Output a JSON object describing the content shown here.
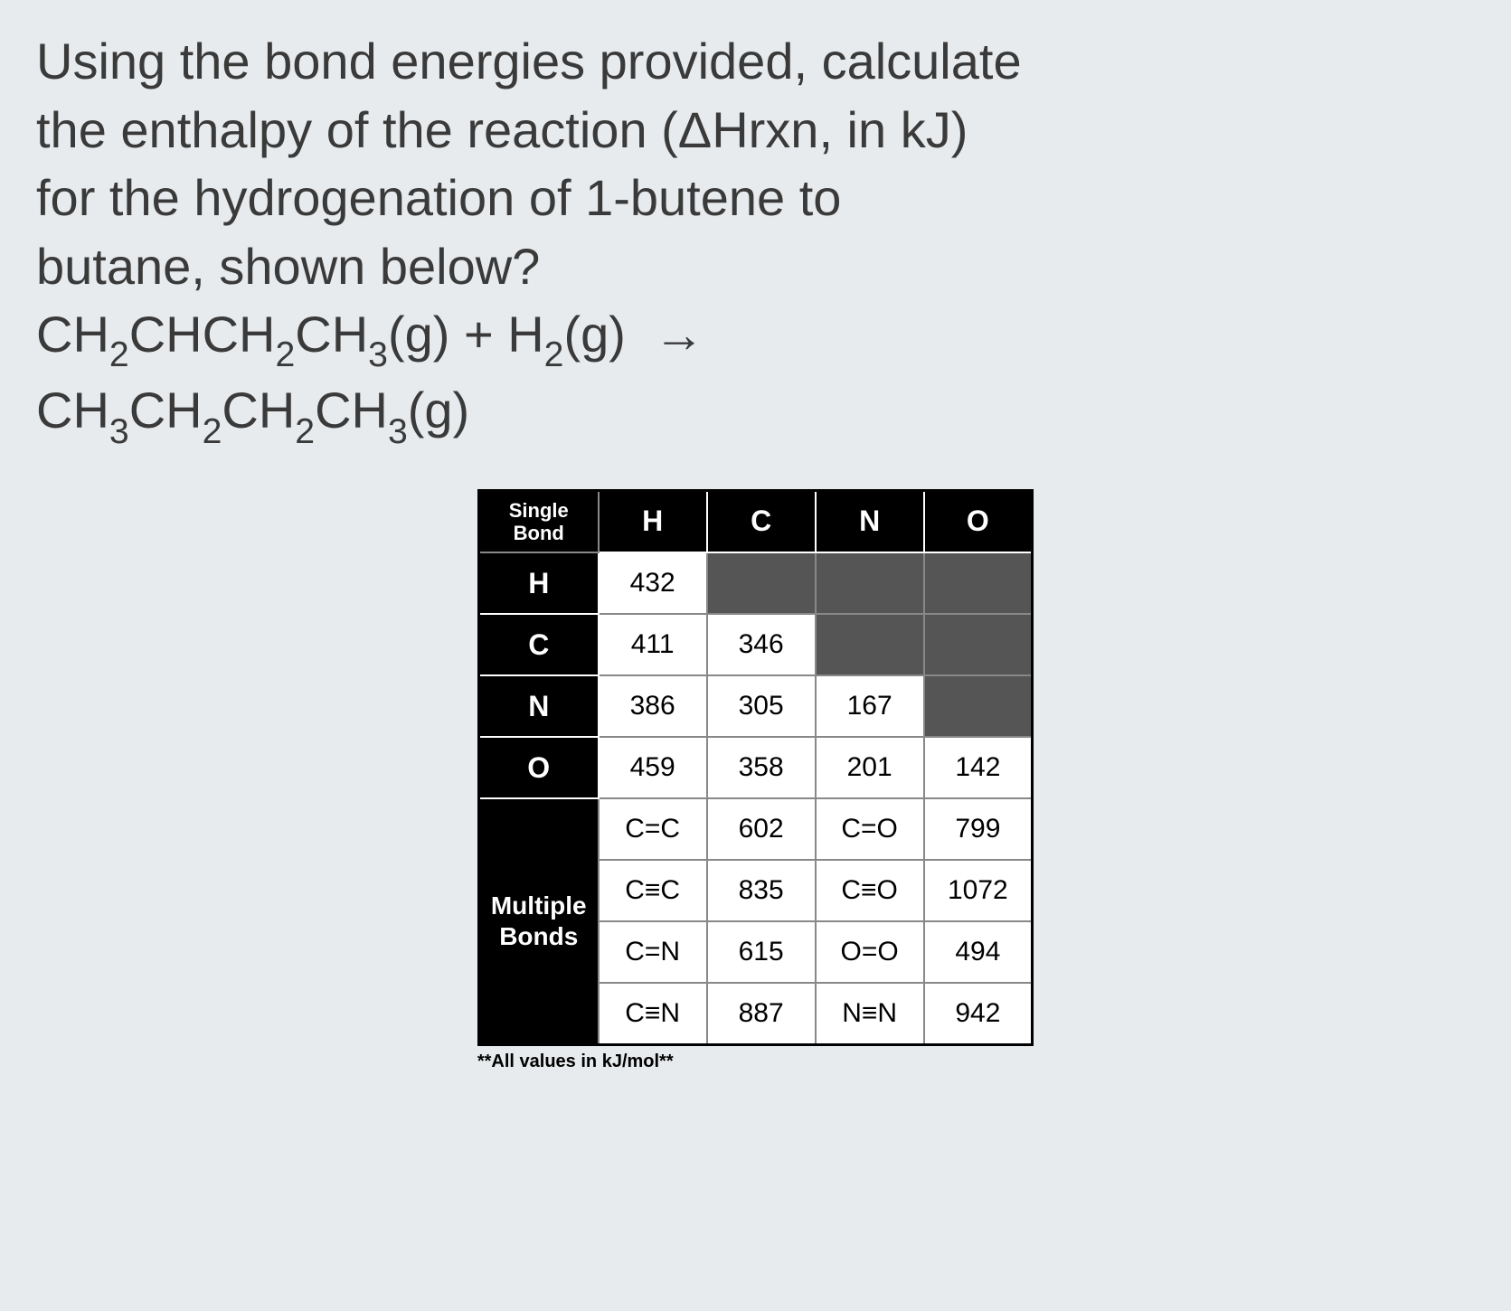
{
  "question": {
    "line1": "Using the bond energies provided, calculate",
    "line2_a": "the enthalpy of the reaction (",
    "line2_b": "Hrxn, in kJ)",
    "line3": "for the hydrogenation of 1-butene to",
    "line4": "butane, shown below?",
    "delta": "Δ",
    "reaction_lhs": "CH",
    "arrow": "→"
  },
  "table": {
    "corner_label_1": "Single",
    "corner_label_2": "Bond",
    "col_headers": [
      "H",
      "C",
      "N",
      "O"
    ],
    "row_headers": [
      "H",
      "C",
      "N",
      "O"
    ],
    "single_bonds": {
      "H": {
        "H": "432",
        "C": "",
        "N": "",
        "O": ""
      },
      "C": {
        "H": "411",
        "C": "346",
        "N": "",
        "O": ""
      },
      "N": {
        "H": "386",
        "C": "305",
        "N": "167",
        "O": ""
      },
      "O": {
        "H": "459",
        "C": "358",
        "N": "201",
        "O": "142"
      }
    },
    "multiple_label_1": "Multiple",
    "multiple_label_2": "Bonds",
    "multiple_bonds": [
      {
        "b1": "C=C",
        "v1": "602",
        "b2": "C=O",
        "v2": "799"
      },
      {
        "b1": "C≡C",
        "v1": "835",
        "b2": "C≡O",
        "v2": "1072"
      },
      {
        "b1": "C=N",
        "v1": "615",
        "b2": "O=O",
        "v2": "494"
      },
      {
        "b1": "C≡N",
        "v1": "887",
        "b2": "N≡N",
        "v2": "942"
      }
    ],
    "footnote": "**All values in kJ/mol**"
  },
  "colors": {
    "background": "#e8ebed",
    "text": "#3a3a3a",
    "table_header_bg": "#000000",
    "table_header_fg": "#ffffff",
    "empty_cell": "#555555",
    "table_bg": "#ffffff",
    "border": "#888888"
  },
  "typography": {
    "question_fontsize": 56,
    "table_fontsize": 32,
    "footnote_fontsize": 20
  }
}
